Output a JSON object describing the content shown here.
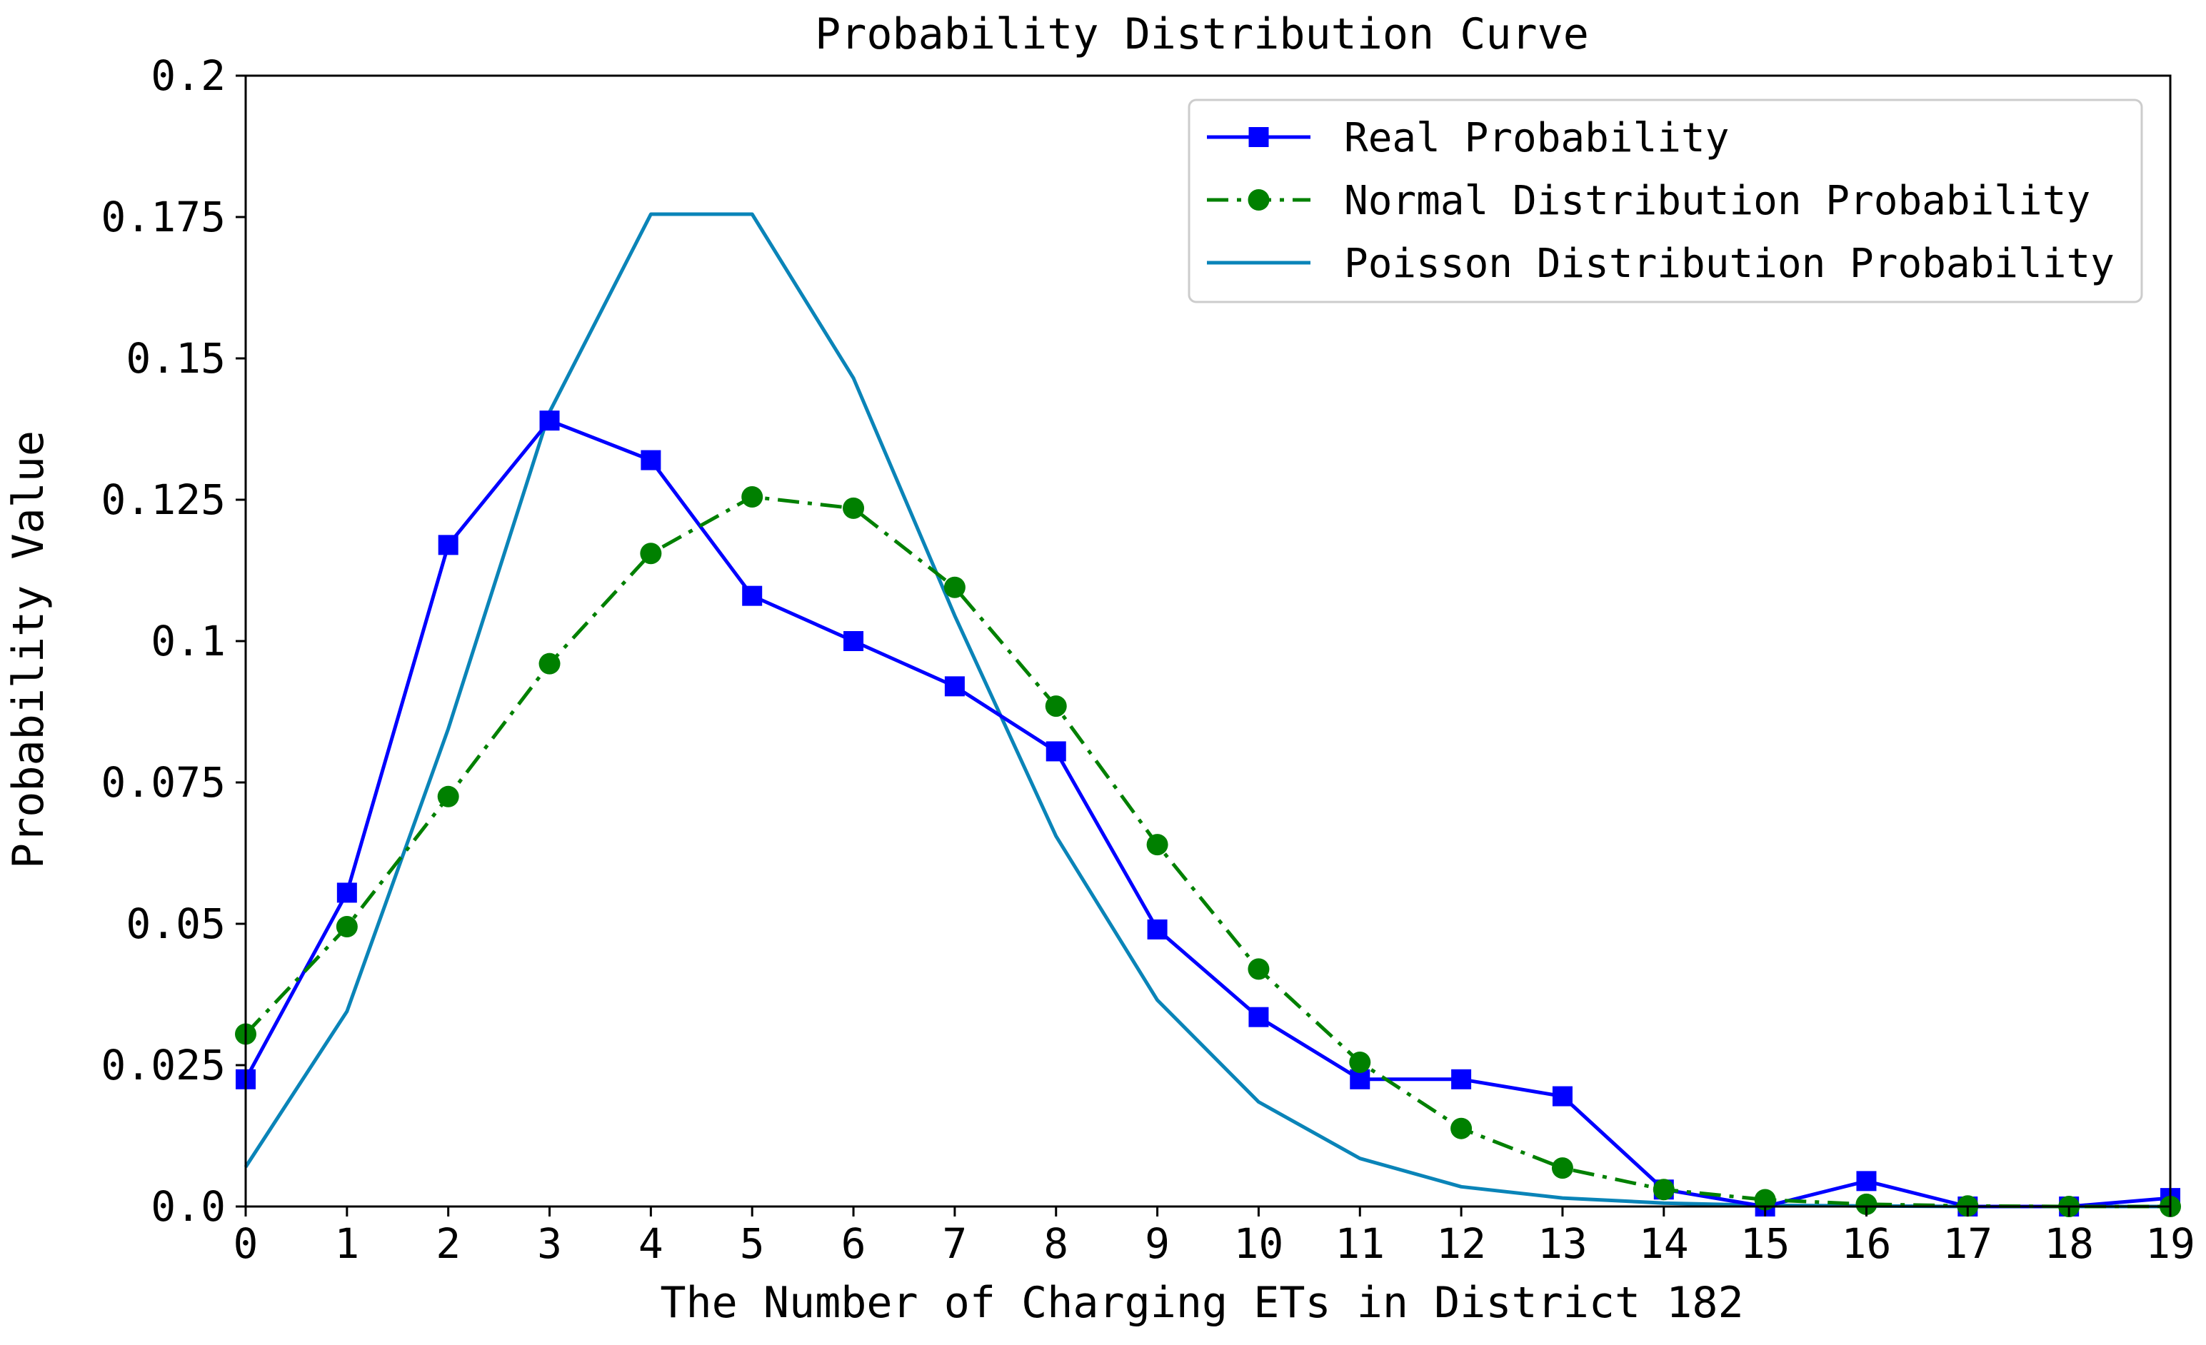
{
  "colors": {
    "real": "#0000ff",
    "normal": "#008000",
    "poisson": "#0a84b8",
    "axis": "#000000",
    "background": "#ffffff"
  },
  "chart_data": {
    "type": "line",
    "title": "Probability Distribution Curve",
    "xlabel": "The Number of Charging ETs in District 182",
    "ylabel": "Probability Value",
    "xlim": [
      0,
      19
    ],
    "ylim": [
      0,
      0.2
    ],
    "x": [
      0,
      1,
      2,
      3,
      4,
      5,
      6,
      7,
      8,
      9,
      10,
      11,
      12,
      13,
      14,
      15,
      16,
      17,
      18,
      19
    ],
    "x_tick_labels": [
      "0",
      "1",
      "2",
      "3",
      "4",
      "5",
      "6",
      "7",
      "8",
      "9",
      "10",
      "11",
      "12",
      "13",
      "14",
      "15",
      "16",
      "17",
      "18",
      "19"
    ],
    "y_ticks": [
      0,
      0.025,
      0.05,
      0.075,
      0.1,
      0.125,
      0.15,
      0.175,
      0.2
    ],
    "y_tick_labels": [
      "0.0",
      "0.025",
      "0.05",
      "0.075",
      "0.1",
      "0.125",
      "0.15",
      "0.175",
      "0.2"
    ],
    "legend_position": "top-right",
    "series": [
      {
        "name": "Real Probability",
        "style": "solid",
        "marker": "square",
        "color_key": "real",
        "values": [
          0.0225,
          0.0555,
          0.117,
          0.139,
          0.132,
          0.108,
          0.1,
          0.092,
          0.0805,
          0.049,
          0.0335,
          0.0225,
          0.0225,
          0.0195,
          0.003,
          0.0,
          0.0045,
          0.0,
          0.0,
          0.0015
        ]
      },
      {
        "name": "Normal Distribution Probability",
        "style": "dashdot",
        "marker": "circle",
        "color_key": "normal",
        "values": [
          0.0305,
          0.0495,
          0.0725,
          0.096,
          0.1155,
          0.1255,
          0.1235,
          0.1095,
          0.0885,
          0.064,
          0.042,
          0.0255,
          0.0138,
          0.0068,
          0.003,
          0.0012,
          0.0004,
          0.0001,
          0.0,
          0.0
        ]
      },
      {
        "name": "Poisson Distribution Probability",
        "style": "solid",
        "marker": "none",
        "color_key": "poisson",
        "values": [
          0.007,
          0.0345,
          0.0845,
          0.1405,
          0.1755,
          0.1755,
          0.1465,
          0.1045,
          0.0655,
          0.0365,
          0.0185,
          0.0085,
          0.0035,
          0.0015,
          0.0006,
          0.0002,
          0.0001,
          0.0,
          0.0,
          0.0
        ]
      }
    ]
  }
}
